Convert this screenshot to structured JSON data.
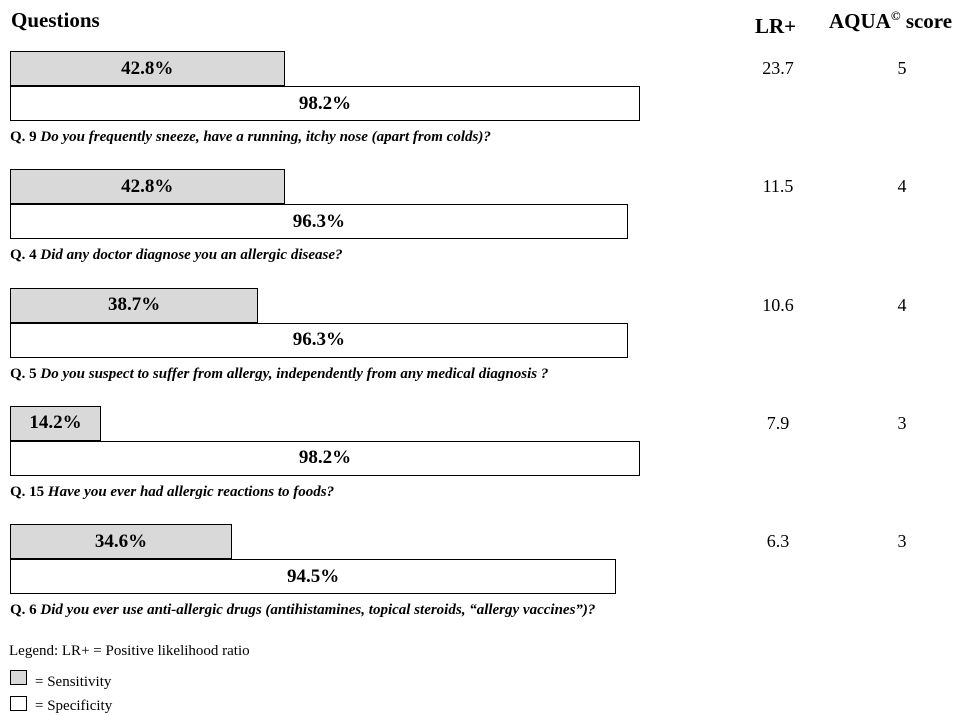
{
  "chart_data": {
    "type": "bar",
    "headers": {
      "questions": "Questions",
      "lr": "LR+",
      "aqua": "AQUA",
      "aqua_sup": "©",
      "score": " score"
    },
    "items": [
      {
        "qnum": "Q. 9",
        "text": "Do you frequently sneeze, have a running, itchy nose (apart from colds)?",
        "sensitivity": 42.8,
        "sensitivity_label": "42.8%",
        "specificity": 98.2,
        "specificity_label": "98.2%",
        "lr": "23.7",
        "aqua": "5"
      },
      {
        "qnum": "Q. 4",
        "text": "Did any doctor diagnose you an allergic disease?",
        "sensitivity": 42.8,
        "sensitivity_label": "42.8%",
        "specificity": 96.3,
        "specificity_label": "96.3%",
        "lr": "11.5",
        "aqua": "4"
      },
      {
        "qnum": "Q. 5",
        "text": "Do you suspect to suffer from allergy, independently from any medical diagnosis ?",
        "sensitivity": 38.7,
        "sensitivity_label": "38.7%",
        "specificity": 96.3,
        "specificity_label": "96.3%",
        "lr": "10.6",
        "aqua": "4"
      },
      {
        "qnum": "Q. 15",
        "text": "Have you ever had allergic reactions to foods?",
        "sensitivity": 14.2,
        "sensitivity_label": "14.2%",
        "specificity": 98.2,
        "specificity_label": "98.2%",
        "lr": "7.9",
        "aqua": "3"
      },
      {
        "qnum": "Q. 6",
        "text": "Did you ever use anti-allergic drugs (antihistamines, topical steroids, “allergy vaccines”)?",
        "sensitivity": 34.6,
        "sensitivity_label": "34.6%",
        "specificity": 94.5,
        "specificity_label": "94.5%",
        "lr": "6.3",
        "aqua": "3"
      }
    ],
    "legend": {
      "note": "Legend: LR+ = Positive likelihood ratio",
      "sensitivity": "= Sensitivity",
      "specificity": "= Specificity"
    },
    "colors": {
      "sensitivity": "#d9d9d9",
      "specificity": "#ffffff"
    },
    "xlim": [
      0,
      100
    ]
  }
}
